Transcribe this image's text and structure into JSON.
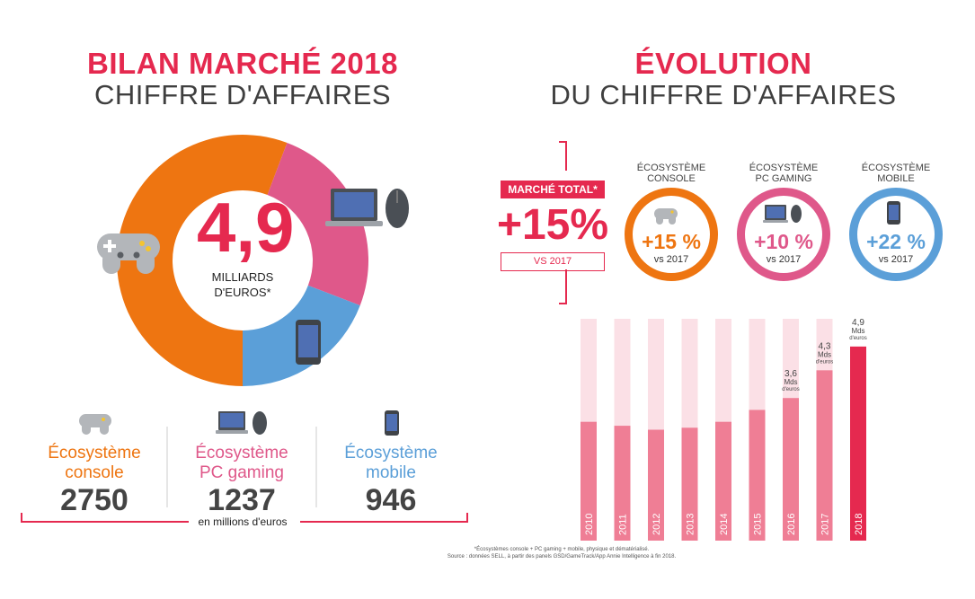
{
  "left": {
    "title_line1": "BILAN MARCHÉ 2018",
    "title_line2": "CHIFFRE D'AFFAIRES",
    "center_value": "4,9",
    "center_unit_line1": "MILLIARDS",
    "center_unit_line2": "D'EUROS*",
    "segments": [
      {
        "label_line1": "Écosystème",
        "label_line2": "console",
        "value": "2750",
        "color": "#ee7511"
      },
      {
        "label_line1": "Écosystème",
        "label_line2": "PC gaming",
        "value": "1237",
        "color": "#df588a"
      },
      {
        "label_line1": "Écosystème",
        "label_line2": "mobile",
        "value": "946",
        "color": "#5b9fd8"
      }
    ],
    "unit_note": "en millions d'euros"
  },
  "right": {
    "title_line1": "ÉVOLUTION",
    "title_line2": "DU CHIFFRE D'AFFAIRES",
    "total_label": "MARCHÉ TOTAL*",
    "total_value": "+15%",
    "total_vs": "VS 2017",
    "circles": [
      {
        "head_line1": "ÉCOSYSTÈME",
        "head_line2": "CONSOLE",
        "value": "+15 %",
        "vs": "vs 2017",
        "color": "#ee7511"
      },
      {
        "head_line1": "ÉCOSYSTÈME",
        "head_line2": "PC GAMING",
        "value": "+10 %",
        "vs": "vs 2017",
        "color": "#df588a"
      },
      {
        "head_line1": "ÉCOSYSTÈME",
        "head_line2": "MOBILE",
        "value": "+22 %",
        "vs": "vs 2017",
        "color": "#5b9fd8"
      }
    ]
  },
  "chart_data": [
    {
      "type": "pie",
      "title": "BILAN MARCHÉ 2018 CHIFFRE D'AFFAIRES",
      "categories": [
        "Écosystème console",
        "Écosystème PC gaming",
        "Écosystème mobile"
      ],
      "values": [
        2750,
        1237,
        946
      ],
      "unit": "en millions d'euros",
      "colors": [
        "#ee7511",
        "#df588a",
        "#5b9fd8"
      ]
    },
    {
      "type": "bar",
      "title": "ÉVOLUTION DU CHIFFRE D'AFFAIRES",
      "categories": [
        "2010",
        "2011",
        "2012",
        "2013",
        "2014",
        "2015",
        "2016",
        "2017",
        "2018"
      ],
      "values": [
        3.0,
        2.9,
        2.8,
        2.85,
        3.0,
        3.3,
        3.6,
        4.3,
        4.9
      ],
      "labels": [
        {
          "index": 6,
          "line1": "3,6",
          "line2": "Mds",
          "line3": "d'euros"
        },
        {
          "index": 7,
          "line1": "4,3",
          "line2": "Mds",
          "line3": "d'euros"
        },
        {
          "index": 8,
          "line1": "4,9",
          "line2": "Mds",
          "line3": "d'euros"
        }
      ],
      "ylim": [
        0,
        5.6
      ],
      "colors": {
        "bar": "#ef7e95",
        "highlight": "#e5294f",
        "background": "#fbe0e6"
      }
    }
  ],
  "footnote_line1": "*Écosystèmes console + PC gaming + mobile, physique et dématérialisé.",
  "footnote_line2": "Source : données SELL, à partir des panels GSD/GameTrack/App Annie Intelligence à fin 2018."
}
